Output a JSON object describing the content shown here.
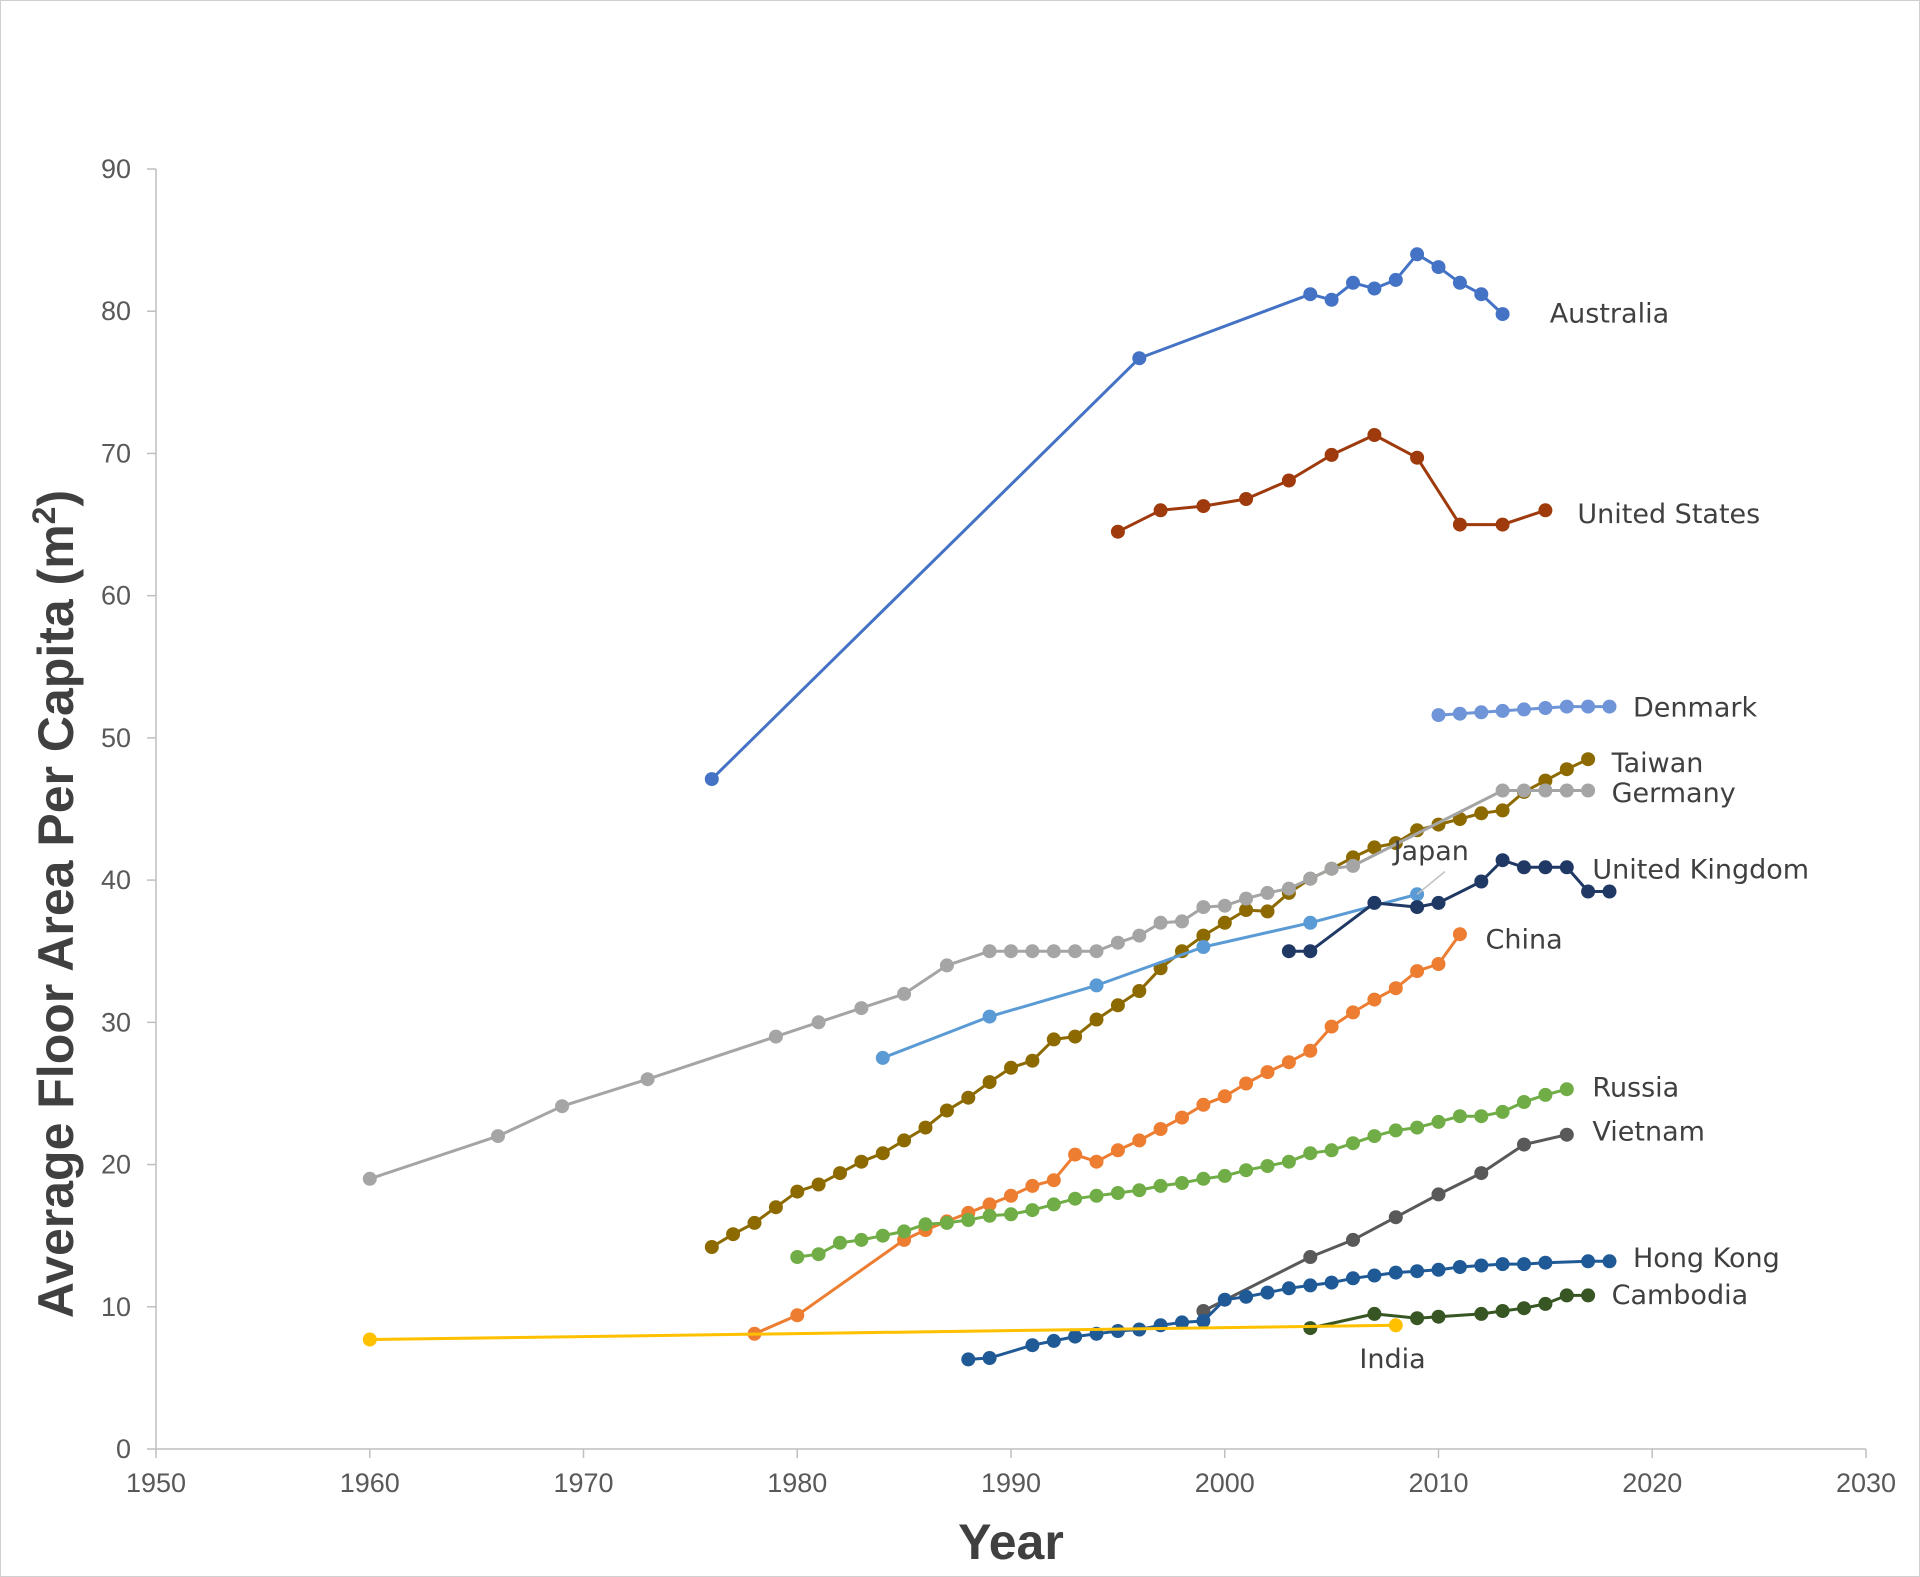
{
  "chart_data": {
    "type": "line",
    "title": "",
    "xlabel": "Year",
    "ylabel": "Average Floor Area Per Capita (m",
    "ylabel_sup": "2",
    "ylabel_tail": ")",
    "xlim": [
      1950,
      2030
    ],
    "ylim": [
      0,
      90
    ],
    "xticks": [
      1950,
      1960,
      1970,
      1980,
      1990,
      2000,
      2010,
      2020,
      2030
    ],
    "yticks": [
      0,
      10,
      20,
      30,
      40,
      50,
      60,
      70,
      80,
      90
    ],
    "grid": false,
    "series": [
      {
        "name": "Australia",
        "color": "#4472C4",
        "x": [
          1976,
          1996,
          2004,
          2005,
          2006,
          2007,
          2008,
          2009,
          2010,
          2011,
          2012,
          2013
        ],
        "y": [
          47.1,
          76.7,
          81.2,
          80.8,
          82.0,
          81.6,
          82.2,
          84.0,
          83.1,
          82.0,
          81.2,
          79.8
        ]
      },
      {
        "name": "United States",
        "color": "#9E3A0C",
        "x": [
          1995,
          1997,
          1999,
          2001,
          2003,
          2005,
          2007,
          2009,
          2011,
          2013,
          2015
        ],
        "y": [
          64.5,
          66.0,
          66.3,
          66.8,
          68.1,
          69.9,
          71.3,
          69.7,
          65.0,
          65.0,
          66.0
        ]
      },
      {
        "name": "Denmark",
        "color": "#6F95D8",
        "x": [
          2010,
          2011,
          2012,
          2013,
          2014,
          2015,
          2016,
          2017,
          2018
        ],
        "y": [
          51.6,
          51.7,
          51.8,
          51.9,
          52.0,
          52.1,
          52.2,
          52.2,
          52.2
        ]
      },
      {
        "name": "Taiwan",
        "color": "#8C6A00",
        "x": [
          1976,
          1977,
          1978,
          1979,
          1980,
          1981,
          1982,
          1983,
          1984,
          1985,
          1986,
          1987,
          1988,
          1989,
          1990,
          1991,
          1992,
          1993,
          1994,
          1995,
          1996,
          1997,
          1998,
          1999,
          2000,
          2001,
          2002,
          2003,
          2004,
          2005,
          2006,
          2007,
          2008,
          2009,
          2010,
          2011,
          2012,
          2013,
          2014,
          2015,
          2016,
          2017
        ],
        "y": [
          14.2,
          15.1,
          15.9,
          17.0,
          18.1,
          18.6,
          19.4,
          20.2,
          20.8,
          21.7,
          22.6,
          23.8,
          24.7,
          25.8,
          26.8,
          27.3,
          28.8,
          29.0,
          30.2,
          31.2,
          32.2,
          33.8,
          35.0,
          36.1,
          37.0,
          37.9,
          37.8,
          39.1,
          40.1,
          40.8,
          41.6,
          42.3,
          42.6,
          43.5,
          43.9,
          44.3,
          44.7,
          44.9,
          46.2,
          47.0,
          47.8,
          48.5
        ]
      },
      {
        "name": "Germany",
        "color": "#A5A5A5",
        "x": [
          1960,
          1966,
          1969,
          1973,
          1979,
          1981,
          1983,
          1985,
          1987,
          1989,
          1990,
          1991,
          1992,
          1993,
          1994,
          1995,
          1996,
          1997,
          1998,
          1999,
          2000,
          2001,
          2002,
          2003,
          2004,
          2005,
          2006,
          2013,
          2014,
          2015,
          2016,
          2017
        ],
        "y": [
          19.0,
          22.0,
          24.1,
          26.0,
          29.0,
          30.0,
          31.0,
          32.0,
          34.0,
          35.0,
          35.0,
          35.0,
          35.0,
          35.0,
          35.0,
          35.6,
          36.1,
          37.0,
          37.1,
          38.1,
          38.2,
          38.7,
          39.1,
          39.4,
          40.1,
          40.8,
          41.0,
          46.3,
          46.3,
          46.3,
          46.3,
          46.3
        ]
      },
      {
        "name": "Japan",
        "color": "#5B9BD5",
        "x": [
          1984,
          1989,
          1994,
          1999,
          2004,
          2009
        ],
        "y": [
          27.5,
          30.4,
          32.6,
          35.3,
          37.0,
          39.0
        ]
      },
      {
        "name": "United Kingdom",
        "color": "#203864",
        "x": [
          2003,
          2004,
          2007,
          2009,
          2010,
          2012,
          2013,
          2014,
          2015,
          2016,
          2017,
          2018
        ],
        "y": [
          35.0,
          35.0,
          38.4,
          38.1,
          38.4,
          39.9,
          41.4,
          40.9,
          40.9,
          40.9,
          39.2,
          39.2
        ]
      },
      {
        "name": "China",
        "color": "#ED7D31",
        "x": [
          1978,
          1980,
          1985,
          1986,
          1987,
          1988,
          1989,
          1990,
          1991,
          1992,
          1993,
          1994,
          1995,
          1996,
          1997,
          1998,
          1999,
          2000,
          2001,
          2002,
          2003,
          2004,
          2005,
          2006,
          2007,
          2008,
          2009,
          2010,
          2011
        ],
        "y": [
          8.1,
          9.4,
          14.7,
          15.4,
          16.0,
          16.6,
          17.2,
          17.8,
          18.5,
          18.9,
          20.7,
          20.2,
          21.0,
          21.7,
          22.5,
          23.3,
          24.2,
          24.8,
          25.7,
          26.5,
          27.2,
          28.0,
          29.7,
          30.7,
          31.6,
          32.4,
          33.6,
          34.1,
          36.2
        ]
      },
      {
        "name": "Russia",
        "color": "#70AD47",
        "x": [
          1980,
          1981,
          1982,
          1983,
          1984,
          1985,
          1986,
          1987,
          1988,
          1989,
          1990,
          1991,
          1992,
          1993,
          1994,
          1995,
          1996,
          1997,
          1998,
          1999,
          2000,
          2001,
          2002,
          2003,
          2004,
          2005,
          2006,
          2007,
          2008,
          2009,
          2010,
          2011,
          2012,
          2013,
          2014,
          2015,
          2016
        ],
        "y": [
          13.5,
          13.7,
          14.5,
          14.7,
          15.0,
          15.3,
          15.8,
          15.9,
          16.1,
          16.4,
          16.5,
          16.8,
          17.2,
          17.6,
          17.8,
          18.0,
          18.2,
          18.5,
          18.7,
          19.0,
          19.2,
          19.6,
          19.9,
          20.2,
          20.8,
          21.0,
          21.5,
          22.0,
          22.4,
          22.6,
          23.0,
          23.4,
          23.4,
          23.7,
          24.4,
          24.9,
          25.3
        ]
      },
      {
        "name": "Vietnam",
        "color": "#595959",
        "x": [
          1999,
          2004,
          2006,
          2008,
          2010,
          2012,
          2014,
          2016
        ],
        "y": [
          9.7,
          13.5,
          14.7,
          16.3,
          17.9,
          19.4,
          21.4,
          22.1
        ]
      },
      {
        "name": "Hong Kong",
        "color": "#1F5A96",
        "x": [
          1988,
          1989,
          1991,
          1992,
          1993,
          1994,
          1995,
          1996,
          1997,
          1998,
          1999,
          2000,
          2001,
          2002,
          2003,
          2004,
          2005,
          2006,
          2007,
          2008,
          2009,
          2010,
          2011,
          2012,
          2013,
          2014,
          2015,
          2017,
          2018
        ],
        "y": [
          6.3,
          6.4,
          7.3,
          7.6,
          7.9,
          8.1,
          8.3,
          8.4,
          8.7,
          8.9,
          9.0,
          10.5,
          10.7,
          11.0,
          11.3,
          11.5,
          11.7,
          12.0,
          12.2,
          12.4,
          12.5,
          12.6,
          12.8,
          12.9,
          13.0,
          13.0,
          13.1,
          13.2,
          13.2
        ]
      },
      {
        "name": "Cambodia",
        "color": "#375623",
        "x": [
          2004,
          2007,
          2009,
          2010,
          2012,
          2013,
          2014,
          2015,
          2016,
          2017
        ],
        "y": [
          8.5,
          9.5,
          9.2,
          9.3,
          9.5,
          9.7,
          9.9,
          10.2,
          10.8,
          10.8
        ]
      },
      {
        "name": "India",
        "color": "#FFC000",
        "x": [
          1960,
          2008
        ],
        "y": [
          7.7,
          8.7
        ]
      }
    ],
    "annotations": [
      {
        "text": "Australia",
        "x": 2015.2,
        "y": 79.9,
        "anchor": "start"
      },
      {
        "text": "United States",
        "x": 2016.5,
        "y": 65.8,
        "anchor": "start"
      },
      {
        "text": "Denmark",
        "x": 2019.1,
        "y": 52.2,
        "anchor": "start"
      },
      {
        "text": "Taiwan",
        "x": 2018.1,
        "y": 48.3,
        "anchor": "start"
      },
      {
        "text": "Germany",
        "x": 2018.1,
        "y": 46.2,
        "anchor": "start"
      },
      {
        "text": "Japan",
        "x": 2007.9,
        "y": 42.1,
        "anchor": "start"
      },
      {
        "text": "United Kingdom",
        "x": 2017.2,
        "y": 40.8,
        "anchor": "start"
      },
      {
        "text": "China",
        "x": 2012.2,
        "y": 35.9,
        "anchor": "start"
      },
      {
        "text": "Russia",
        "x": 2017.2,
        "y": 25.5,
        "anchor": "start"
      },
      {
        "text": "Vietnam",
        "x": 2017.2,
        "y": 22.4,
        "anchor": "start"
      },
      {
        "text": "Hong Kong",
        "x": 2019.1,
        "y": 13.5,
        "anchor": "start"
      },
      {
        "text": "Cambodia",
        "x": 2018.1,
        "y": 10.9,
        "anchor": "start"
      },
      {
        "text": "India",
        "x": 2006.3,
        "y": 6.4,
        "anchor": "start"
      }
    ]
  }
}
